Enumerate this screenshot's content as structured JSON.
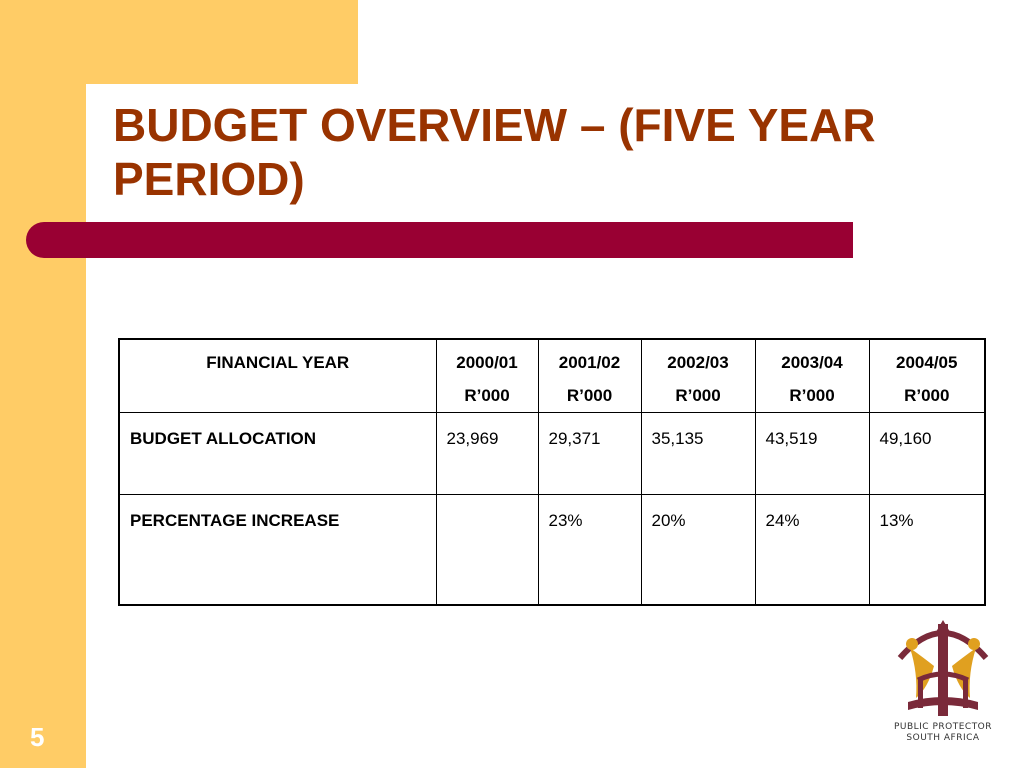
{
  "slide": {
    "title_line1": "BUDGET OVERVIEW – (FIVE YEAR",
    "title_line2": "PERIOD)",
    "page_number": "5"
  },
  "colors": {
    "band": "#ffcc66",
    "title": "#993300",
    "bar": "#990033"
  },
  "table": {
    "header_label": "FINANCIAL YEAR",
    "years": [
      {
        "year": "2000/01",
        "unit": "R’000"
      },
      {
        "year": "2001/02",
        "unit": "R’000"
      },
      {
        "year": "2002/03",
        "unit": "R’000"
      },
      {
        "year": "2003/04",
        "unit": "R’000"
      },
      {
        "year": "2004/05",
        "unit": "R’000"
      }
    ],
    "rows": [
      {
        "label": "BUDGET ALLOCATION",
        "values": [
          "23,969",
          "29,371",
          "35,135",
          "43,519",
          "49,160"
        ]
      },
      {
        "label": "PERCENTAGE INCREASE",
        "values": [
          "",
          "23%",
          "20%",
          "24%",
          "13%"
        ]
      }
    ]
  },
  "logo": {
    "icon": "public-protector-emblem-icon",
    "text_line1": "PUBLIC PROTECTOR",
    "text_line2": "SOUTH AFRICA"
  }
}
